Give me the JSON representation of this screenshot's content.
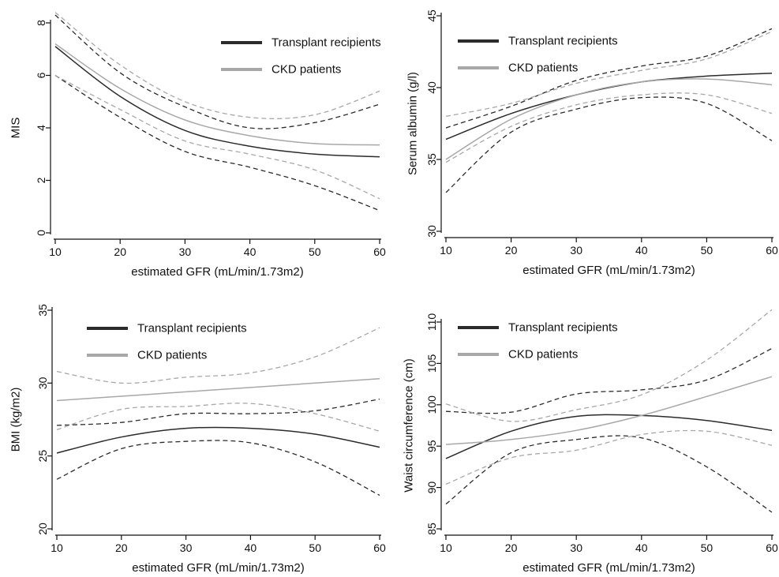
{
  "colors": {
    "transplant": "#2b2b2b",
    "ckd": "#a8a8a8",
    "axis": "#111111",
    "background": "#ffffff"
  },
  "legend_labels": [
    "Transplant recipients",
    "CKD patients"
  ],
  "chart_data": [
    {
      "id": "mis",
      "type": "line",
      "title": "",
      "xlabel": "estimated GFR (mL/min/1.73m2)",
      "ylabel": "MIS",
      "xlim": [
        10,
        60
      ],
      "ylim": [
        0,
        8
      ],
      "x_ticks": [
        10,
        20,
        30,
        40,
        50,
        60
      ],
      "y_ticks": [
        0,
        2,
        4,
        6,
        8
      ],
      "legend_position": "top-right",
      "x": [
        10,
        20,
        30,
        40,
        50,
        60
      ],
      "series": [
        {
          "name": "Transplant recipients",
          "color": "#2b2b2b",
          "style": "solid",
          "values": [
            7.1,
            5.2,
            3.9,
            3.3,
            3.0,
            2.9
          ]
        },
        {
          "name": "",
          "color": "#2b2b2b",
          "style": "dashed",
          "values": [
            8.3,
            6.1,
            4.8,
            4.0,
            4.2,
            4.9
          ]
        },
        {
          "name": "",
          "color": "#2b2b2b",
          "style": "dashed",
          "values": [
            6.0,
            4.4,
            3.1,
            2.5,
            1.8,
            0.85
          ]
        },
        {
          "name": "CKD patients",
          "color": "#a8a8a8",
          "style": "solid",
          "values": [
            7.2,
            5.5,
            4.3,
            3.7,
            3.4,
            3.35
          ]
        },
        {
          "name": "",
          "color": "#a8a8a8",
          "style": "dashed",
          "values": [
            8.4,
            6.4,
            5.0,
            4.4,
            4.5,
            5.4
          ]
        },
        {
          "name": "",
          "color": "#a8a8a8",
          "style": "dashed",
          "values": [
            6.0,
            4.7,
            3.5,
            3.0,
            2.4,
            1.3
          ]
        }
      ]
    },
    {
      "id": "albumin",
      "type": "line",
      "title": "",
      "xlabel": "estimated GFR (mL/min/1.73m2)",
      "ylabel": "Serum albumin (g/l)",
      "xlim": [
        10,
        60
      ],
      "ylim": [
        30,
        45
      ],
      "x_ticks": [
        10,
        20,
        30,
        40,
        50,
        60
      ],
      "x_tick_labels": [
        "10",
        "20",
        "30",
        "40",
        "50",
        "60"
      ],
      "y_ticks": [
        30,
        35,
        40,
        45
      ],
      "legend_position": "top-left",
      "x": [
        10,
        20,
        30,
        40,
        50,
        60
      ],
      "series": [
        {
          "name": "Transplant recipients",
          "color": "#2b2b2b",
          "style": "solid",
          "values": [
            36.4,
            38.2,
            39.5,
            40.4,
            40.8,
            41.0
          ]
        },
        {
          "name": "",
          "color": "#2b2b2b",
          "style": "dashed",
          "values": [
            37.2,
            38.7,
            40.5,
            41.5,
            42.2,
            44.1
          ]
        },
        {
          "name": "",
          "color": "#2b2b2b",
          "style": "dashed",
          "values": [
            32.7,
            36.9,
            38.5,
            39.3,
            38.9,
            36.3
          ]
        },
        {
          "name": "CKD patients",
          "color": "#a8a8a8",
          "style": "solid",
          "values": [
            35.0,
            37.8,
            39.5,
            40.4,
            40.6,
            40.2
          ]
        },
        {
          "name": "",
          "color": "#a8a8a8",
          "style": "dashed",
          "values": [
            38.0,
            38.9,
            40.3,
            41.2,
            42.0,
            43.9
          ]
        },
        {
          "name": "",
          "color": "#a8a8a8",
          "style": "dashed",
          "values": [
            34.8,
            37.3,
            38.8,
            39.5,
            39.5,
            38.2
          ]
        }
      ]
    },
    {
      "id": "bmi",
      "type": "line",
      "title": "",
      "xlabel": "estimated GFR (mL/min/1.73m2)",
      "ylabel": "BMI (kg/m2)",
      "xlim": [
        10,
        60
      ],
      "ylim": [
        20,
        35
      ],
      "x_ticks": [
        10,
        20,
        30,
        40,
        50,
        60
      ],
      "y_ticks": [
        20,
        25,
        30,
        35
      ],
      "legend_position": "top-left",
      "x": [
        10,
        20,
        30,
        40,
        50,
        60
      ],
      "series": [
        {
          "name": "Transplant recipients",
          "color": "#2b2b2b",
          "style": "solid",
          "values": [
            25.2,
            26.3,
            26.9,
            26.9,
            26.5,
            25.6
          ]
        },
        {
          "name": "",
          "color": "#2b2b2b",
          "style": "dashed",
          "values": [
            27.1,
            27.3,
            27.9,
            27.9,
            28.1,
            28.9
          ]
        },
        {
          "name": "",
          "color": "#2b2b2b",
          "style": "dashed",
          "values": [
            23.4,
            25.5,
            26.0,
            25.9,
            24.6,
            22.3
          ]
        },
        {
          "name": "CKD patients",
          "color": "#a8a8a8",
          "style": "solid",
          "values": [
            28.8,
            29.1,
            29.4,
            29.7,
            30.0,
            30.3
          ]
        },
        {
          "name": "",
          "color": "#a8a8a8",
          "style": "dashed",
          "values": [
            30.8,
            30.0,
            30.4,
            30.7,
            31.8,
            33.8
          ]
        },
        {
          "name": "",
          "color": "#a8a8a8",
          "style": "dashed",
          "values": [
            26.8,
            28.2,
            28.4,
            28.6,
            27.9,
            26.7
          ]
        }
      ]
    },
    {
      "id": "waist",
      "type": "line",
      "title": "",
      "xlabel": "estimated GFR (mL/min/1.73m2)",
      "ylabel": "Waist circumference (cm)",
      "xlim": [
        10,
        60
      ],
      "ylim": [
        85,
        110
      ],
      "x_ticks": [
        10,
        20,
        30,
        40,
        50,
        60
      ],
      "x_tick_labels": [
        "10",
        "20",
        "30",
        "40",
        "50",
        "60"
      ],
      "y_ticks": [
        85,
        90,
        95,
        100,
        105,
        110
      ],
      "legend_position": "top-left",
      "x": [
        10,
        20,
        30,
        40,
        50,
        60
      ],
      "series": [
        {
          "name": "Transplant recipients",
          "color": "#2b2b2b",
          "style": "solid",
          "values": [
            93.5,
            96.8,
            98.6,
            98.7,
            98.1,
            96.9
          ]
        },
        {
          "name": "",
          "color": "#2b2b2b",
          "style": "dashed",
          "values": [
            99.2,
            99.1,
            101.3,
            101.8,
            103.0,
            106.8
          ]
        },
        {
          "name": "",
          "color": "#2b2b2b",
          "style": "dashed",
          "values": [
            88.0,
            94.2,
            95.8,
            96.0,
            92.5,
            87.0
          ]
        },
        {
          "name": "CKD patients",
          "color": "#a8a8a8",
          "style": "solid",
          "values": [
            95.2,
            95.8,
            96.9,
            98.7,
            101.0,
            103.4
          ]
        },
        {
          "name": "",
          "color": "#a8a8a8",
          "style": "dashed",
          "values": [
            100.1,
            98.0,
            99.4,
            101.2,
            105.4,
            111.5
          ]
        },
        {
          "name": "",
          "color": "#a8a8a8",
          "style": "dashed",
          "values": [
            90.4,
            93.6,
            94.5,
            96.4,
            96.8,
            95.1
          ]
        }
      ]
    }
  ]
}
